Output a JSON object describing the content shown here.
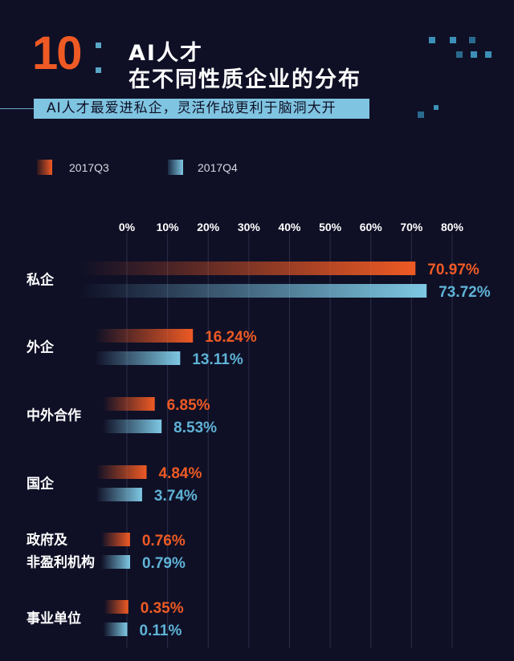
{
  "header": {
    "number": "10",
    "title_line1": "AI人才",
    "title_line2": "在不同性质企业的分布",
    "subtitle": "AI人才最爱进私企，灵活作战更利于脑洞大开"
  },
  "legend": {
    "q3": "2017Q3",
    "q4": "2017Q4"
  },
  "colors": {
    "q3": "#ef5a24",
    "q4": "#7ec8e3",
    "background": "#0f1026",
    "q4_label": "#5fb3d6"
  },
  "chart_data": {
    "type": "bar",
    "orientation": "horizontal",
    "categories": [
      "私企",
      "外企",
      "中外合作",
      "国企",
      "政府及\n非盈利机构",
      "事业单位"
    ],
    "category_lines": [
      [
        "私企"
      ],
      [
        "外企"
      ],
      [
        "中外合作"
      ],
      [
        "国企"
      ],
      [
        "政府及",
        "非盈利机构"
      ],
      [
        "事业单位"
      ]
    ],
    "series": [
      {
        "name": "2017Q3",
        "values": [
          70.97,
          16.24,
          6.85,
          4.84,
          0.76,
          0.35
        ],
        "labels": [
          "70.97%",
          "16.24%",
          "6.85%",
          "4.84%",
          "0.76%",
          "0.35%"
        ]
      },
      {
        "name": "2017Q4",
        "values": [
          73.72,
          13.11,
          8.53,
          3.74,
          0.79,
          0.11
        ],
        "labels": [
          "73.72%",
          "13.11%",
          "8.53%",
          "3.74%",
          "0.79%",
          "0.11%"
        ]
      }
    ],
    "xlim": [
      0,
      80
    ],
    "xticks": [
      "0%",
      "10%",
      "20%",
      "30%",
      "40%",
      "50%",
      "60%",
      "70%",
      "80%"
    ],
    "grid": true
  }
}
